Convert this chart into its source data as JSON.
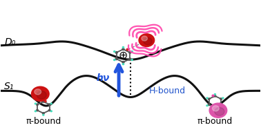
{
  "bg_color": "#ffffff",
  "curve_color": "#111111",
  "curve_lw": 2.2,
  "arrow_color": "#2255dd",
  "D0_label": "D₀",
  "S1_label": "S₁",
  "hnu_label": "hν",
  "H_bound_label": "H-bound",
  "pi_bound_left": "π-bound",
  "pi_bound_right": "π-bound",
  "label_fontsize": 10,
  "small_fontsize": 9,
  "wave_color": "#ff44aa",
  "ring_color": "#666666",
  "H_color": "#44ddbb",
  "O_color_red": "#cc1111",
  "O_color_pink": "#ee44aa",
  "Ar_red": "#cc1111",
  "Ar_pink": "#dd55aa",
  "figsize": [
    3.78,
    1.88
  ],
  "dpi": 100
}
